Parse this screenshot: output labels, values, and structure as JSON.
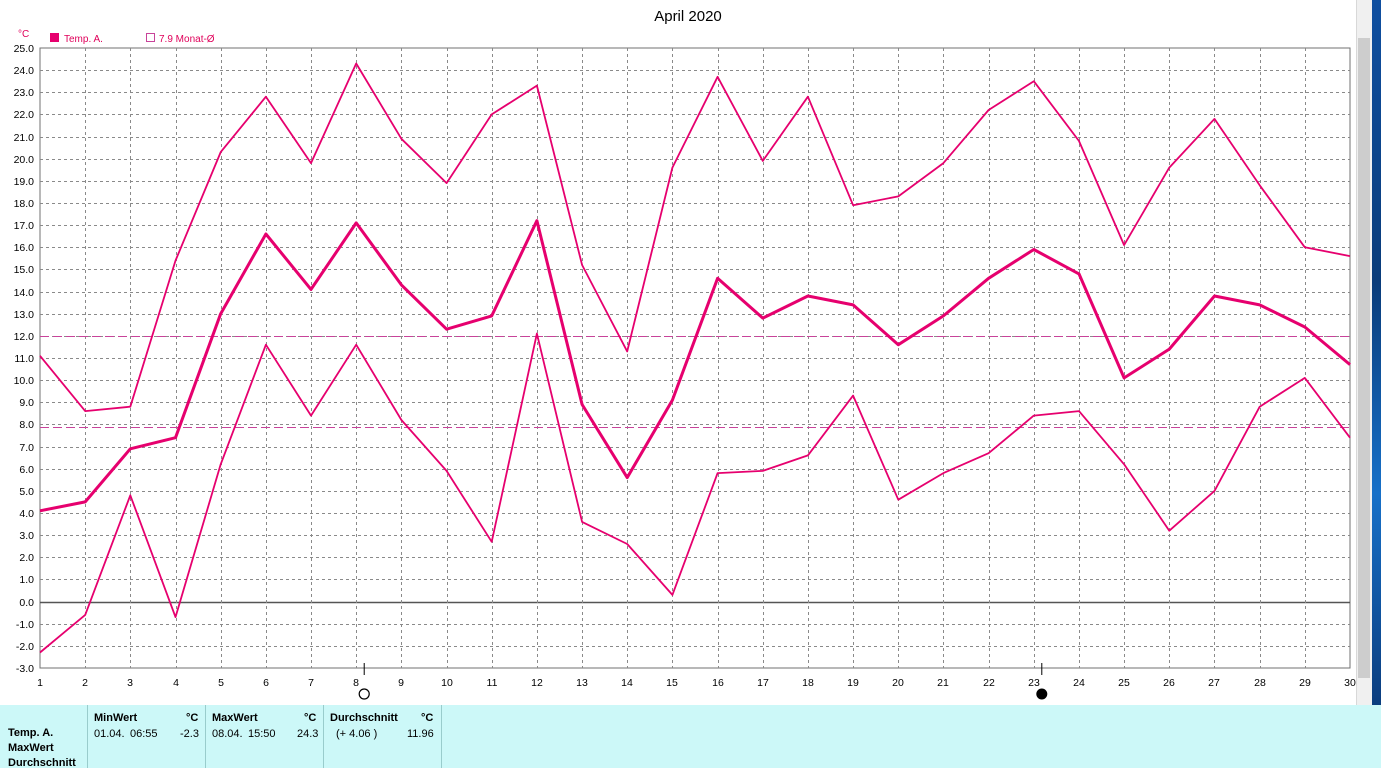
{
  "title": "April 2020",
  "unit": "°C",
  "legend": {
    "series_label": "Temp. A.",
    "avg_label": "7.9 Monat-Ø"
  },
  "colors": {
    "series": "#e6006e",
    "grid": "#909090",
    "avg_line": "#c8439a",
    "stats_bg": "#ccf8f8"
  },
  "moon_icons": {
    "full_moon_day": 8,
    "new_moon_day": 23,
    "full_moon_icon": "full-moon-icon",
    "new_moon_icon": "new-moon-icon"
  },
  "chart_data": {
    "type": "line",
    "title": "April 2020",
    "ylabel": "°C",
    "xlabel": "",
    "ylim": [
      -3.0,
      25.0
    ],
    "ytick_step": 1.0,
    "x": [
      1,
      2,
      3,
      4,
      5,
      6,
      7,
      8,
      9,
      10,
      11,
      12,
      13,
      14,
      15,
      16,
      17,
      18,
      19,
      20,
      21,
      22,
      23,
      24,
      25,
      26,
      27,
      28,
      29,
      30
    ],
    "grid": true,
    "legend_position": "top-left",
    "series": [
      {
        "role": "max",
        "values": [
          11.1,
          8.6,
          8.8,
          15.4,
          20.3,
          22.8,
          19.8,
          24.3,
          20.9,
          18.9,
          22.0,
          23.3,
          15.2,
          11.3,
          19.6,
          23.7,
          19.9,
          22.8,
          17.9,
          18.3,
          19.8,
          22.2,
          23.5,
          20.8,
          16.1,
          19.6,
          21.8,
          18.8,
          16.0,
          15.6
        ]
      },
      {
        "name": "Temp. A.",
        "role": "mean",
        "values": [
          4.1,
          4.5,
          6.9,
          7.4,
          13.0,
          16.6,
          14.1,
          17.1,
          14.3,
          12.3,
          12.9,
          17.2,
          8.9,
          5.6,
          9.1,
          14.6,
          12.8,
          13.8,
          13.4,
          11.6,
          12.9,
          14.6,
          15.9,
          14.8,
          10.1,
          11.4,
          13.8,
          13.4,
          12.4,
          10.7
        ]
      },
      {
        "role": "min",
        "values": [
          -2.3,
          -0.6,
          4.8,
          -0.7,
          6.2,
          11.6,
          8.4,
          11.6,
          8.2,
          5.9,
          2.7,
          12.1,
          3.6,
          2.6,
          0.3,
          5.8,
          5.9,
          6.6,
          9.3,
          4.6,
          5.8,
          6.7,
          8.4,
          8.6,
          6.2,
          3.2,
          5.0,
          8.8,
          10.1,
          7.4
        ]
      }
    ],
    "reference_lines": [
      {
        "value": 12.0
      },
      {
        "value": 7.9,
        "label": "7.9 Monat-Ø"
      }
    ]
  },
  "stats": {
    "row_labels": [
      "Temp. A.",
      "MaxWert",
      "Durchschnitt"
    ],
    "min": {
      "header": "MinWert",
      "unit": "°C",
      "date": "01.04.",
      "time": "06:55",
      "value": "-2.3"
    },
    "max": {
      "header": "MaxWert",
      "unit": "°C",
      "date": "08.04.",
      "time": "15:50",
      "value": "24.3"
    },
    "avg": {
      "header": "Durchschnitt",
      "unit": "°C",
      "delta": "(+ 4.06 )",
      "value": "11.96"
    }
  }
}
